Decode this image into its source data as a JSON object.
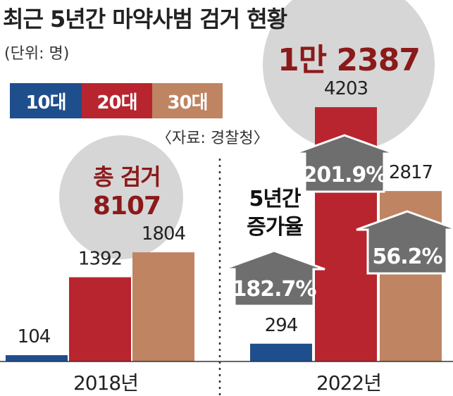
{
  "header": {
    "title": "최근 5년간 마약사범 검거 현황",
    "unit": "(단위: 명)",
    "source": "〈자료: 경찰청〉"
  },
  "legend": [
    {
      "label": "10대",
      "color": "#1f4e8c"
    },
    {
      "label": "20대",
      "color": "#b8252f"
    },
    {
      "label": "30대",
      "color": "#bf8462"
    }
  ],
  "colors": {
    "circle": "#d6d6d6",
    "arrow": "#6e6e6e",
    "axis": "#333333",
    "divider": "#333333",
    "total_text": "#8b1a1a"
  },
  "chart_data": {
    "type": "bar",
    "title": "최근 5년간 마약사범 검거 현황",
    "categories": [
      "2018년",
      "2022년"
    ],
    "series": [
      {
        "name": "10대",
        "values": [
          104,
          294
        ]
      },
      {
        "name": "20대",
        "values": [
          1392,
          4203
        ]
      },
      {
        "name": "30대",
        "values": [
          1804,
          2817
        ]
      }
    ],
    "ylim": [
      0,
      4600
    ],
    "totals": [
      {
        "category": "2018년",
        "label": "총 검거",
        "value": "8107"
      },
      {
        "category": "2022년",
        "label": "",
        "value": "1만 2387"
      }
    ],
    "growth_label": "5년간\n증가율",
    "growth_rates": [
      {
        "series": "10대",
        "value": "182.7%"
      },
      {
        "series": "20대",
        "value": "201.9%"
      },
      {
        "series": "30대",
        "value": "56.2%"
      }
    ]
  }
}
